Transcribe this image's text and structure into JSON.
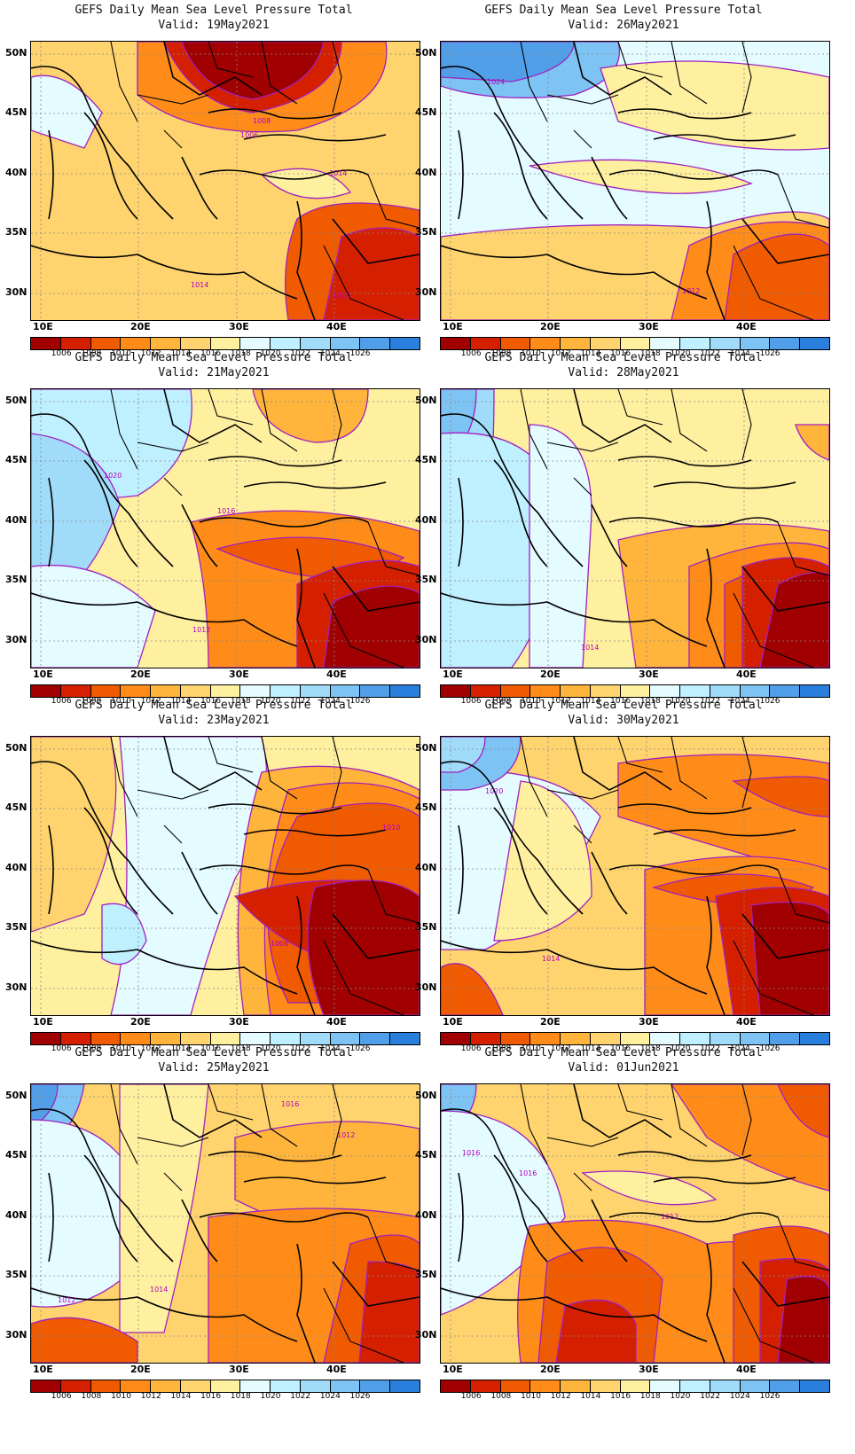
{
  "title": "GEFS Daily Mean Sea Level Pressure Total",
  "colors": [
    "#a00000",
    "#d42000",
    "#f05a00",
    "#ff8c19",
    "#ffb43c",
    "#ffd46e",
    "#fff0a0",
    "#e4fbff",
    "#bff0ff",
    "#a0dcfa",
    "#7dc3f4",
    "#509fe8",
    "#2a7fdc"
  ],
  "colorbar_labels": [
    "1006",
    "1008",
    "1010",
    "1012",
    "1014",
    "1016",
    "1018",
    "1020",
    "1022",
    "1024",
    "1026"
  ],
  "lat_labels": [
    "50N",
    "45N",
    "40N",
    "35N",
    "30N"
  ],
  "lon_labels": [
    "10E",
    "20E",
    "30E",
    "40E"
  ],
  "panels": [
    {
      "valid": "Valid: 19May2021",
      "contour_labels": [
        "1014",
        "1010",
        "1006",
        "1008",
        "1014"
      ],
      "bg": 5,
      "blobs": [
        [
          7,
          "M0,40 Q40,30 80,80 L60,120 L0,100 Z"
        ],
        [
          3,
          "M120,0 L400,0 Q410,70 300,100 Q180,110 120,60 Z"
        ],
        [
          1,
          "M150,0 L350,0 Q350,60 250,80 Q180,70 150,0 Z"
        ],
        [
          0,
          "M170,0 L330,0 Q320,50 250,65 Q190,55 170,0 Z"
        ],
        [
          2,
          "M300,200 Q340,170 438,190 L438,314 L290,314 Q280,250 300,200 Z"
        ],
        [
          1,
          "M350,220 Q400,200 438,220 L438,314 L330,314 Z"
        ],
        [
          6,
          "M260,150 Q330,130 360,170 Q300,190 260,150 Z"
        ]
      ],
      "label_pos": [
        [
          336,
          151
        ],
        [
          340,
          289
        ],
        [
          236,
          108
        ],
        [
          250,
          92
        ],
        [
          180,
          277
        ]
      ]
    },
    {
      "valid": "Valid: 26May2021",
      "contour_labels": [
        "1024",
        "1012"
      ],
      "bg": 7,
      "blobs": [
        [
          10,
          "M0,0 L200,0 Q210,40 150,60 Q60,70 0,50 Z"
        ],
        [
          11,
          "M0,0 L150,0 Q150,30 80,45 L0,40 Z"
        ],
        [
          6,
          "M180,30 Q300,10 438,40 L438,120 Q330,130 200,90 Z"
        ],
        [
          5,
          "M0,220 Q150,200 300,210 Q400,180 438,200 L438,314 L0,314 Z"
        ],
        [
          3,
          "M280,230 Q360,190 438,210 L438,314 L260,314 Z"
        ],
        [
          2,
          "M330,240 Q400,200 438,230 L438,314 L320,314 Z"
        ],
        [
          6,
          "M100,140 Q250,120 350,160 Q250,190 100,140 Z"
        ]
      ],
      "label_pos": [
        [
          52,
          48
        ],
        [
          272,
          284
        ]
      ]
    },
    {
      "valid": "Valid: 21May2021",
      "contour_labels": [
        "1020",
        "1016",
        "1012"
      ],
      "bg": 6,
      "blobs": [
        [
          8,
          "M0,0 L180,0 Q190,80 120,120 Q40,130 0,110 Z"
        ],
        [
          9,
          "M0,50 Q80,60 100,130 Q60,240 0,240 Z"
        ],
        [
          7,
          "M0,200 Q80,190 140,250 L120,314 L0,314 Z"
        ],
        [
          3,
          "M180,150 Q300,120 438,160 L438,314 L200,314 Q200,220 180,150 Z"
        ],
        [
          2,
          "M210,180 Q320,150 420,190 Q350,240 210,180 Z"
        ],
        [
          1,
          "M300,220 Q380,180 438,200 L438,314 L300,314 Z"
        ],
        [
          0,
          "M340,240 Q400,210 438,230 L438,314 L330,314 Z"
        ],
        [
          4,
          "M250,0 L380,0 Q380,60 320,60 Q260,50 250,0 Z"
        ]
      ],
      "label_pos": [
        [
          82,
          100
        ],
        [
          210,
          140
        ],
        [
          182,
          274
        ]
      ]
    },
    {
      "valid": "Valid: 28May2021",
      "contour_labels": [
        "1014"
      ],
      "bg": 6,
      "blobs": [
        [
          9,
          "M0,0 L60,0 Q60,200 20,314 L0,314 Z"
        ],
        [
          10,
          "M0,0 L40,0 Q40,60 0,80 Z"
        ],
        [
          8,
          "M0,50 Q120,40 140,150 Q120,260 80,314 L0,314 Z"
        ],
        [
          7,
          "M100,40 Q170,40 170,140 L160,314 L100,314 Z"
        ],
        [
          4,
          "M200,170 Q320,140 438,160 L438,314 L220,314 Z"
        ],
        [
          3,
          "M280,200 Q380,160 438,180 L438,314 L280,314 Z"
        ],
        [
          2,
          "M320,220 Q400,180 438,200 L438,314 L320,314 Z"
        ],
        [
          1,
          "M340,200 Q400,180 438,200 L438,314 L340,314 Z"
        ],
        [
          0,
          "M380,220 Q420,200 438,210 L438,314 L360,314 Z"
        ],
        [
          4,
          "M400,40 L438,40 L438,80 Q410,70 400,40 Z"
        ]
      ],
      "label_pos": [
        [
          158,
          294
        ]
      ]
    },
    {
      "valid": "Valid: 23May2021",
      "contour_labels": [
        "1010",
        "1008"
      ],
      "bg": 6,
      "blobs": [
        [
          7,
          "M100,0 L260,0 Q280,80 230,160 Q200,240 180,314 L90,314 Q120,200 100,0 Z"
        ],
        [
          8,
          "M80,190 Q120,180 130,230 Q110,270 80,250 Z"
        ],
        [
          5,
          "M0,0 L90,0 Q110,100 60,200 L0,220 Z"
        ],
        [
          4,
          "M260,40 Q360,20 438,60 L438,314 L240,314 Q220,170 260,40 Z"
        ],
        [
          3,
          "M290,60 Q380,40 438,70 L438,314 L270,314 Q250,180 290,60 Z"
        ],
        [
          2,
          "M300,90 Q400,60 438,90 L438,300 L290,300 Q240,200 300,90 Z"
        ],
        [
          1,
          "M230,180 Q330,150 420,170 Q438,230 400,260 Q300,260 230,180 Z"
        ],
        [
          0,
          "M320,170 Q400,150 438,180 L438,314 L330,314 Q300,240 320,170 Z"
        ]
      ],
      "label_pos": [
        [
          396,
          105
        ],
        [
          270,
          236
        ]
      ]
    },
    {
      "valid": "Valid: 30May2021",
      "contour_labels": [
        "1020",
        "1014"
      ],
      "bg": 5,
      "blobs": [
        [
          7,
          "M0,40 Q130,30 180,90 Q130,200 50,240 L0,240 Z"
        ],
        [
          10,
          "M0,0 L90,0 Q90,50 30,60 L0,60 Z"
        ],
        [
          9,
          "M0,0 L50,0 Q50,30 20,40 L0,40 Z"
        ],
        [
          6,
          "M90,50 Q170,60 170,180 Q130,230 60,230 Z"
        ],
        [
          3,
          "M200,30 Q330,10 438,30 L438,160 Q330,130 200,90 Z"
        ],
        [
          2,
          "M330,50 Q420,40 438,50 L438,90 Q390,90 330,50 Z"
        ],
        [
          3,
          "M230,150 Q350,120 438,150 L438,314 L230,314 Z"
        ],
        [
          2,
          "M240,170 Q340,140 420,170 Q370,210 240,170 Z"
        ],
        [
          1,
          "M310,180 Q390,160 438,180 L438,314 L330,314 Z"
        ],
        [
          0,
          "M350,190 Q420,180 438,200 L438,314 L360,314 Z"
        ],
        [
          2,
          "M0,260 Q40,240 70,314 L0,314 Z"
        ]
      ],
      "label_pos": [
        [
          50,
          64
        ],
        [
          114,
          253
        ]
      ]
    },
    {
      "valid": "Valid: 25May2021",
      "contour_labels": [
        "1016",
        "1012",
        "1012",
        "1014"
      ],
      "bg": 5,
      "blobs": [
        [
          10,
          "M0,0 L60,0 Q50,60 0,80 Z"
        ],
        [
          11,
          "M0,0 L30,0 Q30,30 0,50 Z"
        ],
        [
          8,
          "M0,60 Q80,60 110,140 Q80,220 0,230 Z"
        ],
        [
          7,
          "M0,40 Q120,40 140,180 Q80,260 0,250 Z"
        ],
        [
          6,
          "M100,0 L200,0 Q190,120 150,280 L100,280 Z"
        ],
        [
          4,
          "M230,60 Q340,30 438,50 L438,200 Q330,180 230,130 Z"
        ],
        [
          3,
          "M200,150 Q330,130 438,150 L438,314 L200,314 Z"
        ],
        [
          2,
          "M360,180 Q420,160 438,180 L438,314 L330,314 Z"
        ],
        [
          1,
          "M380,200 Q438,200 438,220 L438,314 L370,314 Z"
        ],
        [
          2,
          "M0,270 Q60,250 120,290 L120,314 L0,314 Z"
        ]
      ],
      "label_pos": [
        [
          282,
          25
        ],
        [
          345,
          60
        ],
        [
          30,
          246
        ],
        [
          134,
          234
        ]
      ]
    },
    {
      "valid": "Valid: 01Jun2021",
      "contour_labels": [
        "1016",
        "1016",
        "1012"
      ],
      "bg": 5,
      "blobs": [
        [
          10,
          "M0,0 L40,0 Q40,40 0,60 Z"
        ],
        [
          8,
          "M0,40 Q70,40 80,140 Q60,220 0,250 Z"
        ],
        [
          7,
          "M0,30 Q120,30 140,150 Q80,230 0,260 Z"
        ],
        [
          3,
          "M260,0 L438,0 L438,120 Q360,100 300,60 Z"
        ],
        [
          2,
          "M380,0 L438,0 L438,60 Q400,50 380,0 Z"
        ],
        [
          3,
          "M100,160 Q220,140 300,180 Q438,160 438,314 L90,314 Q80,230 100,160 Z"
        ],
        [
          2,
          "M120,200 Q200,160 250,220 L240,314 L110,314 Z"
        ],
        [
          1,
          "M140,250 Q200,230 220,270 L220,314 L130,314 Z"
        ],
        [
          2,
          "M330,170 Q400,150 438,170 L438,314 L330,314 Z"
        ],
        [
          1,
          "M360,200 Q420,190 438,210 L438,314 L360,314 Z"
        ],
        [
          0,
          "M390,220 Q430,210 438,230 L438,314 L380,314 Z"
        ],
        [
          6,
          "M160,100 Q260,90 310,130 Q230,150 160,100 Z"
        ]
      ],
      "label_pos": [
        [
          24,
          80
        ],
        [
          88,
          103
        ],
        [
          248,
          152
        ]
      ]
    }
  ]
}
